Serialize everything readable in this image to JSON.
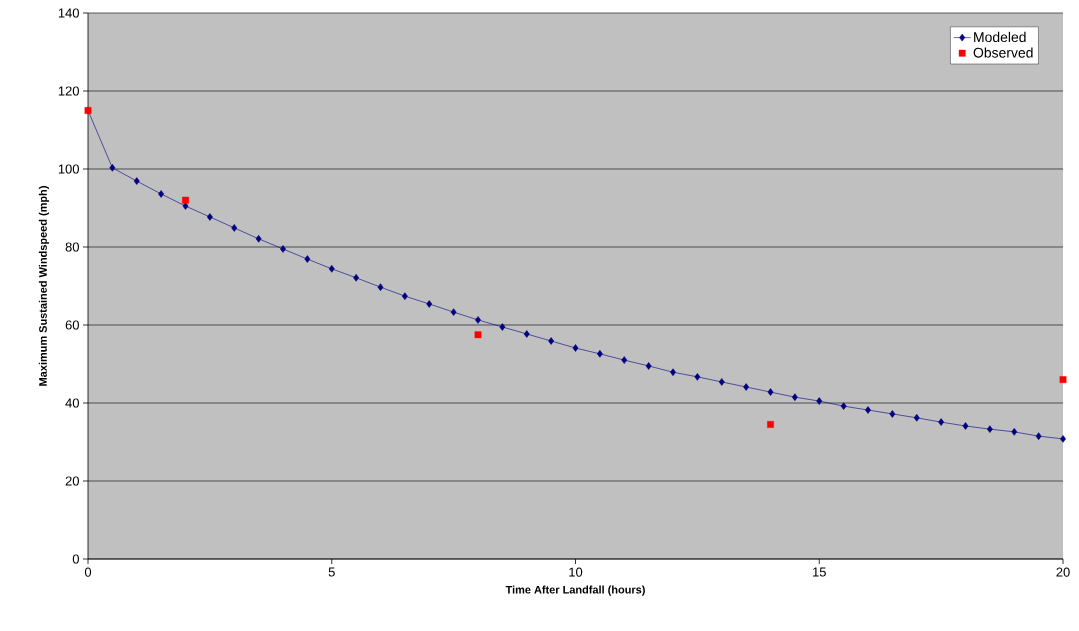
{
  "chart_data": {
    "type": "line",
    "xlabel": "Time After Landfall (hours)",
    "ylabel": "Maximum Sustained Windspeed (mph)",
    "xlim": [
      0,
      20
    ],
    "ylim": [
      0,
      140
    ],
    "xticks": [
      0,
      5,
      10,
      15,
      20
    ],
    "yticks": [
      0,
      20,
      40,
      60,
      80,
      100,
      120,
      140
    ],
    "grid": "y",
    "legend": "top right",
    "series": [
      {
        "name": "Modeled",
        "color": "#000080",
        "marker": "diamond",
        "x": [
          0,
          0.5,
          1,
          1.5,
          2,
          2.5,
          3,
          3.5,
          4,
          4.5,
          5,
          5.5,
          6,
          6.5,
          7,
          7.5,
          8,
          8.5,
          9,
          9.5,
          10,
          10.5,
          11,
          11.5,
          12,
          12.5,
          13,
          13.5,
          14,
          14.5,
          15,
          15.5,
          16,
          16.5,
          17,
          17.5,
          18,
          18.5,
          19,
          19.5,
          20
        ],
        "values": [
          115,
          100.3,
          96.9,
          93.6,
          90.5,
          87.7,
          84.9,
          82.1,
          79.5,
          76.9,
          74.4,
          72.1,
          69.7,
          67.4,
          65.4,
          63.3,
          61.3,
          59.5,
          57.7,
          55.9,
          54.1,
          52.6,
          51.0,
          49.5,
          47.9,
          46.7,
          45.4,
          44.1,
          42.8,
          41.5,
          40.5,
          39.2,
          38.2,
          37.2,
          36.2,
          35.1,
          34.1,
          33.3,
          32.6,
          31.5,
          30.8
        ]
      },
      {
        "name": "Observed",
        "type": "scatter",
        "color": "#ff0000",
        "marker": "square",
        "x": [
          0,
          2,
          8,
          14,
          20
        ],
        "values": [
          115,
          92,
          57.5,
          34.5,
          46
        ]
      }
    ]
  }
}
